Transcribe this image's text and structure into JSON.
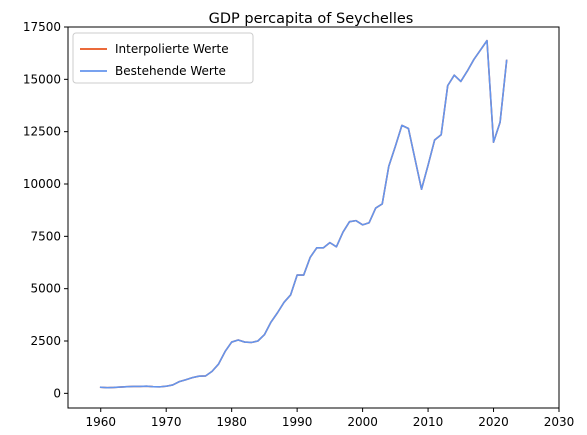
{
  "chart_data": {
    "type": "line",
    "title": "GDP percapita of Seychelles",
    "xlabel": "",
    "ylabel": "",
    "xlim": [
      1955,
      2030
    ],
    "ylim": [
      -700,
      17500
    ],
    "xticks": [
      1960,
      1970,
      1980,
      1990,
      2000,
      2010,
      2020,
      2030
    ],
    "yticks": [
      0,
      2500,
      5000,
      7500,
      10000,
      12500,
      15000,
      17500
    ],
    "grid": false,
    "legend_position": "top-left",
    "series": [
      {
        "name": "Interpolierte Werte",
        "color": "#e8541e",
        "x": [
          1960,
          1961,
          1962,
          1963,
          1964,
          1965,
          1966,
          1967,
          1968,
          1969,
          1970,
          1971,
          1972,
          1973,
          1974,
          1975,
          1976,
          1977,
          1978,
          1979,
          1980,
          1981,
          1982,
          1983,
          1984,
          1985,
          1986,
          1987,
          1988,
          1989,
          1990,
          1991,
          1992,
          1993,
          1994,
          1995,
          1996,
          1997,
          1998,
          1999,
          2000,
          2001,
          2002,
          2003,
          2004,
          2005,
          2006,
          2007,
          2008,
          2009,
          2010,
          2011,
          2012,
          2013,
          2014,
          2015,
          2016,
          2017,
          2018,
          2019,
          2020,
          2021,
          2022
        ],
        "values": [
          290,
          270,
          280,
          300,
          320,
          330,
          330,
          340,
          320,
          310,
          340,
          400,
          560,
          650,
          750,
          820,
          830,
          1050,
          1400,
          2000,
          2450,
          2550,
          2450,
          2430,
          2500,
          2800,
          3400,
          3850,
          4350,
          4700,
          5650,
          5650,
          6500,
          6950,
          6950,
          7200,
          7000,
          7700,
          8200,
          8250,
          8050,
          8150,
          8850,
          9050,
          10850,
          11800,
          12800,
          12650,
          11200,
          9750,
          10900,
          12100,
          12350,
          14700,
          15200,
          14900,
          15400,
          15950,
          16400,
          16850,
          12000,
          12950,
          15900
        ]
      },
      {
        "name": "Bestehende Werte",
        "color": "#6495ed",
        "x": [
          1960,
          1961,
          1962,
          1963,
          1964,
          1965,
          1966,
          1967,
          1968,
          1969,
          1970,
          1971,
          1972,
          1973,
          1974,
          1975,
          1976,
          1977,
          1978,
          1979,
          1980,
          1981,
          1982,
          1983,
          1984,
          1985,
          1986,
          1987,
          1988,
          1989,
          1990,
          1991,
          1992,
          1993,
          1994,
          1995,
          1996,
          1997,
          1998,
          1999,
          2000,
          2001,
          2002,
          2003,
          2004,
          2005,
          2006,
          2007,
          2008,
          2009,
          2010,
          2011,
          2012,
          2013,
          2014,
          2015,
          2016,
          2017,
          2018,
          2019,
          2020,
          2021,
          2022
        ],
        "values": [
          290,
          270,
          280,
          300,
          320,
          330,
          330,
          340,
          320,
          310,
          340,
          400,
          560,
          650,
          750,
          820,
          830,
          1050,
          1400,
          2000,
          2450,
          2550,
          2450,
          2430,
          2500,
          2800,
          3400,
          3850,
          4350,
          4700,
          5650,
          5650,
          6500,
          6950,
          6950,
          7200,
          7000,
          7700,
          8200,
          8250,
          8050,
          8150,
          8850,
          9050,
          10850,
          11800,
          12800,
          12650,
          11200,
          9750,
          10900,
          12100,
          12350,
          14700,
          15200,
          14900,
          15400,
          15950,
          16400,
          16850,
          12000,
          12950,
          15900
        ]
      }
    ]
  }
}
